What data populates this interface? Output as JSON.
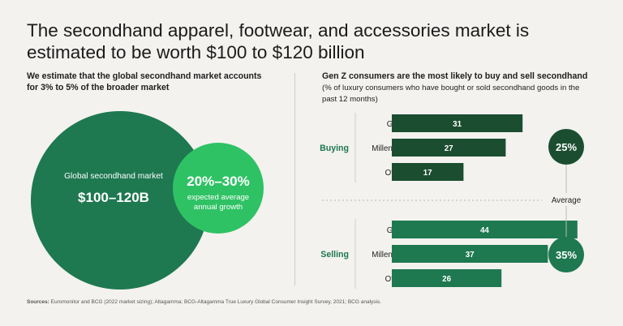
{
  "title": "The secondhand apparel, footwear, and accessories market is estimated to be worth $100 to $120 billion",
  "left_panel": {
    "subtitle": "We estimate that the global secondhand market accounts for 3% to 5% of the broader market",
    "big_circle_label": "Global secondhand market",
    "big_circle_value": "$100–120B",
    "small_circle_value": "20%–30%",
    "small_circle_label": "expected average annual growth"
  },
  "right_panel": {
    "subtitle": "Gen Z consumers are the most likely to buy and sell secondhand",
    "note": "(% of luxury consumers who have bought or sold secondhand goods in the past 12 months)"
  },
  "source": {
    "label": "Sources:",
    "text": " Euromonitor and BCG (2022 market sizing); Altagamma; BCG-Altagamma True Luxury Global Consumer Insight Survey, 2021; BCG analysis."
  },
  "colors": {
    "buying": "#1b4e30",
    "selling": "#1e7850",
    "bright_green": "#2fc265",
    "background": "#f3f2ef"
  },
  "chart_data": {
    "type": "bar",
    "orientation": "horizontal",
    "categories": [
      "Gen Z",
      "Millennials",
      "Others"
    ],
    "groups": [
      {
        "name": "Buying",
        "values": [
          31,
          27,
          17
        ],
        "average_value": "25%"
      },
      {
        "name": "Selling",
        "values": [
          44,
          37,
          26
        ],
        "average_value": "35%"
      }
    ],
    "average_label": "Average",
    "xlim": [
      0,
      50
    ]
  }
}
